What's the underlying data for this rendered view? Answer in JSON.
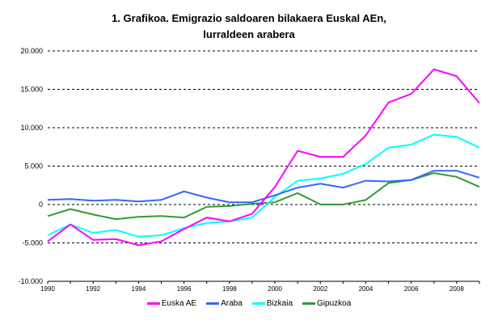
{
  "chart_data": {
    "type": "line",
    "title": "1. Grafikoa. Emigrazio saldoaren bilakaera Euskal AEn, lurraldeen arabera",
    "title_lines": [
      "1. Grafikoa. Emigrazio saldoaren bilakaera Euskal AEn,",
      "lurraldeen arabera"
    ],
    "xlabel": "",
    "ylabel": "",
    "ylim": [
      -10000,
      20000
    ],
    "y_ticks": [
      "20.000",
      "15.000",
      "10.000",
      "5.000",
      "0",
      "-5.000",
      "-10.000"
    ],
    "x_tick_labels": [
      "1990",
      "1992",
      "1994",
      "1996",
      "1998",
      "2000",
      "2002",
      "2004",
      "2006",
      "2008"
    ],
    "grid": "horizontal dashed",
    "legend_position": "bottom",
    "x": [
      1990,
      1991,
      1992,
      1993,
      1994,
      1995,
      1996,
      1997,
      1998,
      1999,
      2000,
      2001,
      2002,
      2003,
      2004,
      2005,
      2006,
      2007,
      2008,
      2009
    ],
    "series": [
      {
        "name": "Euska AE",
        "color": "#FF00FF",
        "values": [
          -4800,
          -2600,
          -4600,
          -4500,
          -5300,
          -4800,
          -3200,
          -1700,
          -2200,
          -1200,
          2300,
          7000,
          6200,
          6200,
          9000,
          13300,
          14400,
          17600,
          16700,
          13200
        ]
      },
      {
        "name": "Araba",
        "color": "#3366FF",
        "values": [
          600,
          700,
          500,
          600,
          400,
          600,
          1700,
          900,
          300,
          300,
          1200,
          2200,
          2700,
          2200,
          3100,
          3000,
          3200,
          4400,
          4400,
          3500
        ]
      },
      {
        "name": "Bizkaia",
        "color": "#00FFFF",
        "values": [
          -4000,
          -2600,
          -3700,
          -3300,
          -4200,
          -4000,
          -3100,
          -2400,
          -2200,
          -1700,
          1000,
          3100,
          3400,
          4000,
          5300,
          7400,
          7800,
          9100,
          8800,
          7400
        ]
      },
      {
        "name": "Gipuzkoa",
        "color": "#339933",
        "values": [
          -1500,
          -600,
          -1300,
          -1900,
          -1600,
          -1500,
          -1700,
          -300,
          -200,
          100,
          300,
          1500,
          0,
          0,
          600,
          2800,
          3200,
          4100,
          3600,
          2300
        ]
      }
    ]
  }
}
